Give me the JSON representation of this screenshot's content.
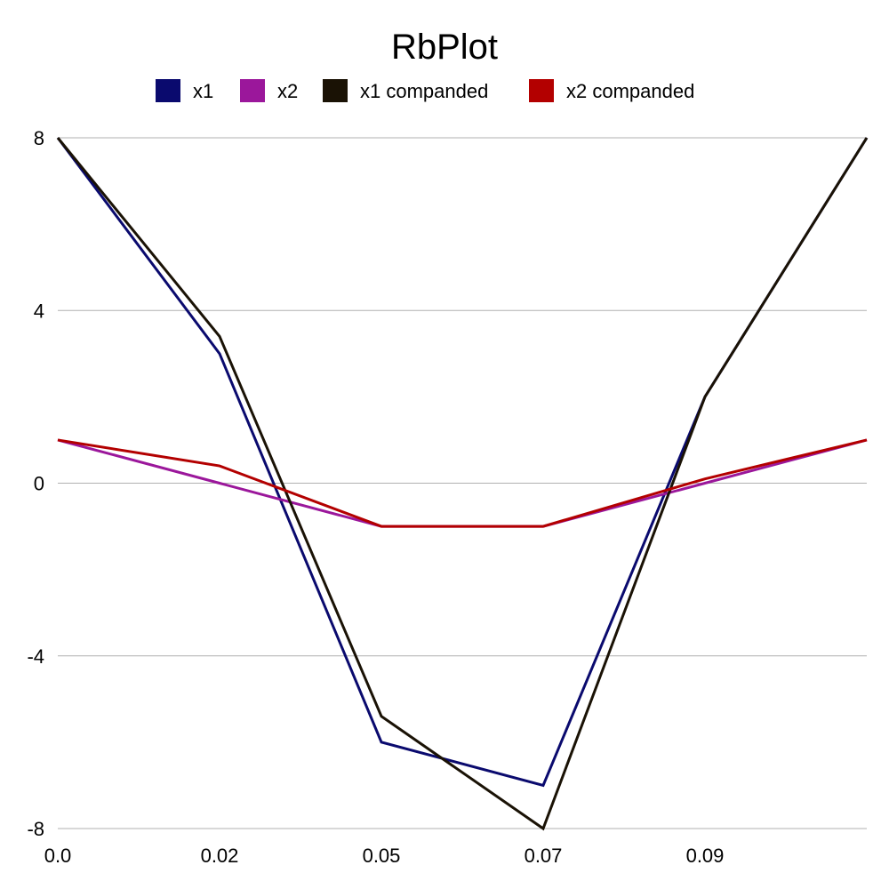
{
  "chart_data": {
    "type": "line",
    "title": "RbPlot",
    "xlabel": "",
    "ylabel": "",
    "x_tick_labels": [
      "0.0",
      "0.02",
      "0.05",
      "0.07",
      "0.09"
    ],
    "y_tick_labels": [
      "8",
      "4",
      "0",
      "-4",
      "-8"
    ],
    "y_ticks": [
      8,
      4,
      0,
      -4,
      -8
    ],
    "ylim": [
      -8,
      8
    ],
    "grid": "horizontal",
    "legend_position": "top",
    "point_count": 6,
    "series": [
      {
        "name": "x1",
        "color": "#0a0a6e",
        "values": [
          8,
          3,
          -6,
          -7,
          2,
          8
        ]
      },
      {
        "name": "x2",
        "color": "#9b179b",
        "values": [
          1,
          0,
          -1,
          -1,
          0,
          1
        ]
      },
      {
        "name": "x1 companded",
        "color": "#1a1205",
        "values": [
          8,
          3.4,
          -5.4,
          -8,
          2,
          8
        ]
      },
      {
        "name": "x2 companded",
        "color": "#b30000",
        "values": [
          1,
          0.4,
          -1,
          -1,
          0.1,
          1
        ]
      }
    ]
  }
}
